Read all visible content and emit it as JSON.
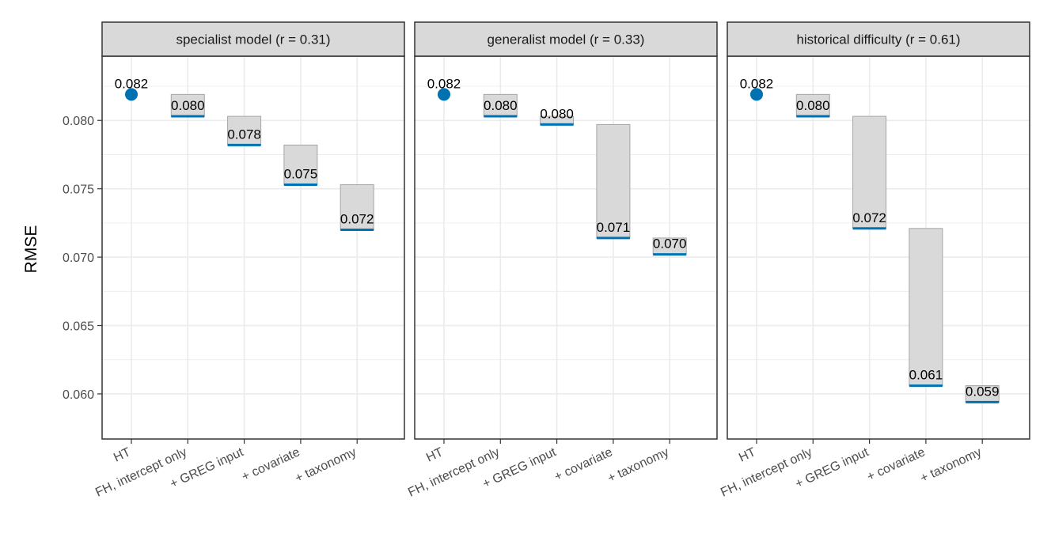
{
  "chart_data": {
    "type": "waterfall",
    "ylabel": "RMSE",
    "ylim": [
      0.0567,
      0.0847
    ],
    "yticks": [
      0.06,
      0.065,
      0.07,
      0.075,
      0.08
    ],
    "ytick_labels": [
      "0.060",
      "0.065",
      "0.070",
      "0.075",
      "0.080"
    ],
    "categories": [
      "HT",
      "FH, intercept only",
      "+ GREG input",
      "+ covariate",
      "+ taxonomy"
    ],
    "grid": true,
    "colors": {
      "point": "#0072B2",
      "segment": "#0072B2",
      "bar_fill": "#d9d9d9",
      "bar_stroke": "#a6a6a6",
      "strip_fill": "#d9d9d9",
      "panel_border": "#333333",
      "grid": "#ebebeb"
    },
    "panels": [
      {
        "title": "specialist model (r = 0.31)",
        "values": [
          0.0819,
          0.0803,
          0.0782,
          0.0753,
          0.072
        ],
        "labels": [
          "0.082",
          "0.080",
          "0.078",
          "0.075",
          "0.072"
        ]
      },
      {
        "title": "generalist model (r = 0.33)",
        "values": [
          0.0819,
          0.0803,
          0.0797,
          0.0714,
          0.0702
        ],
        "labels": [
          "0.082",
          "0.080",
          "0.080",
          "0.071",
          "0.070"
        ]
      },
      {
        "title": "historical difficulty (r = 0.61)",
        "values": [
          0.0819,
          0.0803,
          0.0721,
          0.0606,
          0.0594
        ],
        "labels": [
          "0.082",
          "0.080",
          "0.072",
          "0.061",
          "0.059"
        ]
      }
    ]
  }
}
